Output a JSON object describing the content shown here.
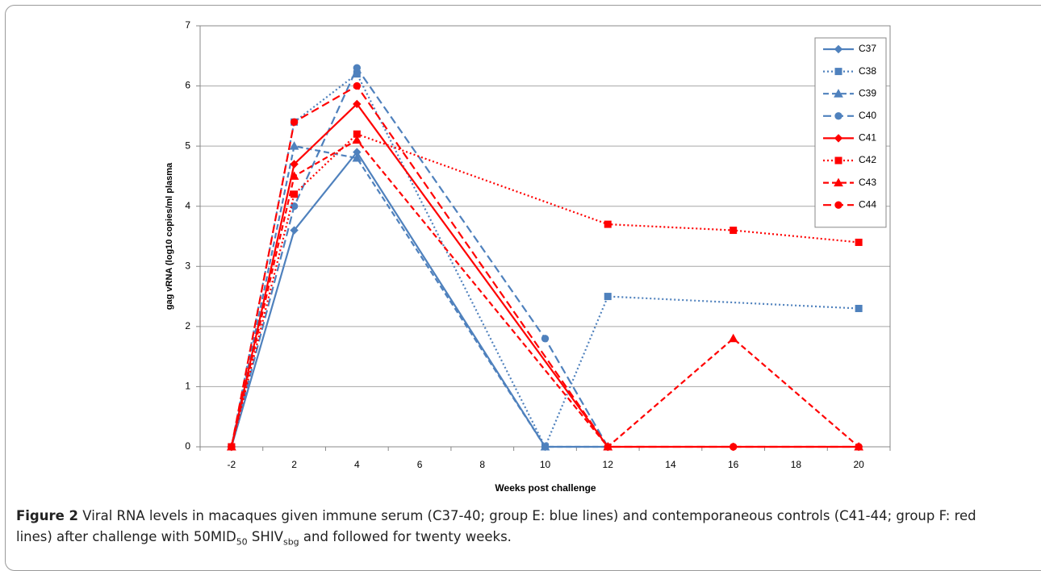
{
  "chart_data": {
    "type": "line",
    "xlabel": "Weeks post challenge",
    "ylabel": "gag vRNA (log10 copies/ml plasma",
    "categories": [
      "-2",
      "2",
      "4",
      "6",
      "8",
      "10",
      "12",
      "14",
      "16",
      "18",
      "20"
    ],
    "ylim": [
      0,
      7
    ],
    "yticks": [
      0,
      1,
      2,
      3,
      4,
      5,
      6,
      7
    ],
    "grid": true,
    "span_gaps": true,
    "legend": "upper right",
    "series": [
      {
        "name": "C37",
        "color": "#4f81bd",
        "dash": "solid",
        "marker": "diamond",
        "values": [
          0,
          3.6,
          4.9,
          null,
          null,
          0,
          0,
          null,
          null,
          null,
          null
        ]
      },
      {
        "name": "C38",
        "color": "#4f81bd",
        "dash": "dotted",
        "marker": "square",
        "values": [
          0,
          5.4,
          6.2,
          null,
          null,
          0,
          2.5,
          null,
          null,
          null,
          2.3
        ]
      },
      {
        "name": "C39",
        "color": "#4f81bd",
        "dash": "dashed",
        "marker": "triangle",
        "values": [
          0,
          5.0,
          4.8,
          null,
          null,
          0,
          0,
          null,
          null,
          null,
          null
        ]
      },
      {
        "name": "C40",
        "color": "#4f81bd",
        "dash": "longdash",
        "marker": "circle",
        "values": [
          0,
          4.0,
          6.3,
          null,
          null,
          1.8,
          0,
          null,
          null,
          null,
          null
        ]
      },
      {
        "name": "C41",
        "color": "#ff0000",
        "dash": "solid",
        "marker": "diamond",
        "values": [
          0,
          4.7,
          5.7,
          null,
          null,
          null,
          0,
          null,
          0,
          null,
          0
        ]
      },
      {
        "name": "C42",
        "color": "#ff0000",
        "dash": "dotted",
        "marker": "square",
        "values": [
          0,
          4.2,
          5.2,
          null,
          null,
          null,
          3.7,
          null,
          3.6,
          null,
          3.4
        ]
      },
      {
        "name": "C43",
        "color": "#ff0000",
        "dash": "dashed",
        "marker": "triangle",
        "values": [
          0,
          4.5,
          5.1,
          null,
          null,
          null,
          0,
          null,
          1.8,
          null,
          0
        ]
      },
      {
        "name": "C44",
        "color": "#ff0000",
        "dash": "longdash",
        "marker": "circle",
        "values": [
          0,
          5.4,
          6.0,
          null,
          null,
          null,
          0,
          null,
          0,
          null,
          0
        ]
      }
    ]
  },
  "caption": {
    "label": "Figure 2",
    "parts": [
      "Viral RNA levels in macaques given immune serum (C37-40; group E: blue lines) and contemporaneous controls (C41-44; group F: red lines) after challenge with 50MID",
      "50",
      " SHIV",
      "sbg",
      " and followed for twenty weeks."
    ]
  }
}
